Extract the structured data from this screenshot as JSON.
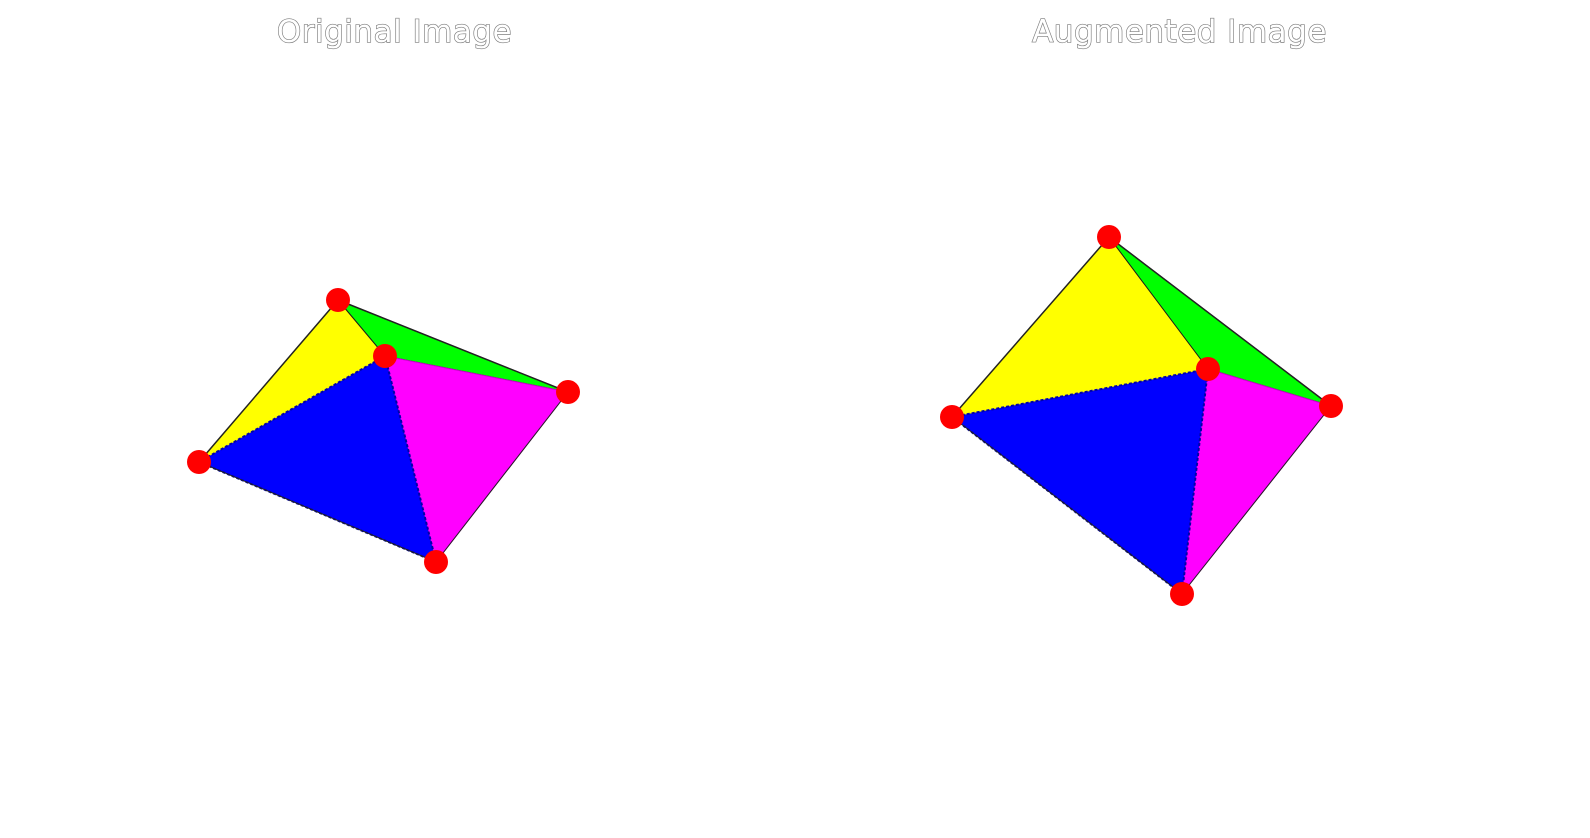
{
  "panels": {
    "left": {
      "title": "Original Image"
    },
    "right": {
      "title": "Augmented Image"
    }
  },
  "colors": {
    "face_top_left": "#ffff00",
    "face_top_right": "#00ff00",
    "face_front": "#0000ff",
    "face_right": "#ff00ff",
    "vertex": "#ff0000",
    "background": "#ffffff"
  }
}
